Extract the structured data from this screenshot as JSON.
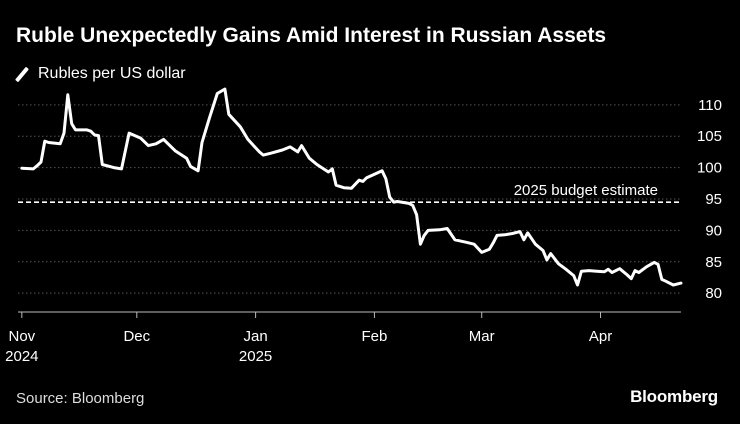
{
  "header": {
    "title": "Ruble Unexpectedly Gains Amid Interest in Russian Assets"
  },
  "footer": {
    "source": "Source: Bloomberg",
    "brand": "Bloomberg"
  },
  "colors": {
    "background": "#000000",
    "line": "#ffffff",
    "grid": "#555555"
  },
  "chart_data": {
    "type": "line",
    "title": "Ruble Unexpectedly Gains Amid Interest in Russian Assets",
    "legend": {
      "placement": "top-left",
      "entries": [
        "Rubles per US dollar"
      ]
    },
    "xlabel": "",
    "ylabel": "",
    "grid": true,
    "ylim": [
      77,
      113
    ],
    "xlim": [
      "2024-10-31",
      "2025-04-22"
    ],
    "y_axis_position": "right",
    "y_ticks": [
      80,
      85,
      90,
      95,
      100,
      105,
      110
    ],
    "x_ticks": [
      {
        "date": "2024-11-01",
        "label": "Nov",
        "sublabel": "2024"
      },
      {
        "date": "2024-12-01",
        "label": "Dec",
        "sublabel": ""
      },
      {
        "date": "2025-01-01",
        "label": "Jan",
        "sublabel": "2025"
      },
      {
        "date": "2025-02-01",
        "label": "Feb",
        "sublabel": ""
      },
      {
        "date": "2025-03-01",
        "label": "Mar",
        "sublabel": ""
      },
      {
        "date": "2025-04-01",
        "label": "Apr",
        "sublabel": ""
      }
    ],
    "annotations": [
      {
        "text": "2025 budget estimate",
        "y": 94.5,
        "style": "dashed"
      }
    ],
    "series": [
      {
        "name": "Rubles per US dollar",
        "points": [
          [
            "2024-11-01",
            99.9
          ],
          [
            "2024-11-04",
            99.8
          ],
          [
            "2024-11-05",
            100.3
          ],
          [
            "2024-11-06",
            100.9
          ],
          [
            "2024-11-07",
            104.2
          ],
          [
            "2024-11-08",
            104.0
          ],
          [
            "2024-11-11",
            103.8
          ],
          [
            "2024-11-12",
            105.5
          ],
          [
            "2024-11-13",
            111.6
          ],
          [
            "2024-11-14",
            107.0
          ],
          [
            "2024-11-15",
            106.0
          ],
          [
            "2024-11-18",
            106.0
          ],
          [
            "2024-11-19",
            105.8
          ],
          [
            "2024-11-20",
            105.2
          ],
          [
            "2024-11-21",
            105.1
          ],
          [
            "2024-11-22",
            100.5
          ],
          [
            "2024-11-25",
            100.0
          ],
          [
            "2024-11-27",
            99.8
          ],
          [
            "2024-11-29",
            105.5
          ],
          [
            "2024-12-02",
            104.7
          ],
          [
            "2024-12-04",
            103.5
          ],
          [
            "2024-12-06",
            103.8
          ],
          [
            "2024-12-08",
            104.5
          ],
          [
            "2024-12-11",
            102.7
          ],
          [
            "2024-12-14",
            101.5
          ],
          [
            "2024-12-15",
            100.2
          ],
          [
            "2024-12-17",
            99.5
          ],
          [
            "2024-12-18",
            104.0
          ],
          [
            "2024-12-20",
            108.0
          ],
          [
            "2024-12-22",
            111.8
          ],
          [
            "2024-12-24",
            112.5
          ],
          [
            "2024-12-25",
            108.5
          ],
          [
            "2024-12-28",
            106.5
          ],
          [
            "2024-12-30",
            104.5
          ],
          [
            "2025-01-02",
            102.5
          ],
          [
            "2025-01-03",
            102.0
          ],
          [
            "2025-01-05",
            102.3
          ],
          [
            "2025-01-08",
            102.8
          ],
          [
            "2025-01-10",
            103.3
          ],
          [
            "2025-01-12",
            102.5
          ],
          [
            "2025-01-13",
            103.5
          ],
          [
            "2025-01-15",
            101.5
          ],
          [
            "2025-01-17",
            100.5
          ],
          [
            "2025-01-20",
            99.3
          ],
          [
            "2025-01-21",
            99.8
          ],
          [
            "2025-01-22",
            97.2
          ],
          [
            "2025-01-24",
            96.8
          ],
          [
            "2025-01-26",
            96.7
          ],
          [
            "2025-01-28",
            98.0
          ],
          [
            "2025-01-29",
            97.8
          ],
          [
            "2025-01-30",
            98.4
          ],
          [
            "2025-02-03",
            99.5
          ],
          [
            "2025-02-04",
            98.2
          ],
          [
            "2025-02-05",
            95.3
          ],
          [
            "2025-02-06",
            94.5
          ],
          [
            "2025-02-07",
            94.6
          ],
          [
            "2025-02-10",
            94.3
          ],
          [
            "2025-02-11",
            94.0
          ],
          [
            "2025-02-12",
            92.5
          ],
          [
            "2025-02-13",
            87.8
          ],
          [
            "2025-02-14",
            89.2
          ],
          [
            "2025-02-15",
            90.0
          ],
          [
            "2025-02-18",
            90.1
          ],
          [
            "2025-02-20",
            90.3
          ],
          [
            "2025-02-22",
            88.5
          ],
          [
            "2025-02-25",
            88.1
          ],
          [
            "2025-02-27",
            87.8
          ],
          [
            "2025-03-01",
            86.5
          ],
          [
            "2025-03-03",
            87.0
          ],
          [
            "2025-03-04",
            88.0
          ],
          [
            "2025-03-05",
            89.2
          ],
          [
            "2025-03-07",
            89.3
          ],
          [
            "2025-03-09",
            89.5
          ],
          [
            "2025-03-11",
            89.8
          ],
          [
            "2025-03-12",
            88.5
          ],
          [
            "2025-03-13",
            89.6
          ],
          [
            "2025-03-15",
            87.8
          ],
          [
            "2025-03-17",
            86.8
          ],
          [
            "2025-03-18",
            85.3
          ],
          [
            "2025-03-19",
            86.3
          ],
          [
            "2025-03-21",
            84.7
          ],
          [
            "2025-03-23",
            83.8
          ],
          [
            "2025-03-25",
            82.8
          ],
          [
            "2025-03-26",
            81.3
          ],
          [
            "2025-03-27",
            83.5
          ],
          [
            "2025-03-29",
            83.6
          ],
          [
            "2025-03-31",
            83.5
          ],
          [
            "2025-04-02",
            83.4
          ],
          [
            "2025-04-03",
            83.8
          ],
          [
            "2025-04-04",
            83.3
          ],
          [
            "2025-04-06",
            83.9
          ],
          [
            "2025-04-08",
            82.9
          ],
          [
            "2025-04-09",
            82.3
          ],
          [
            "2025-04-10",
            83.6
          ],
          [
            "2025-04-11",
            83.3
          ],
          [
            "2025-04-13",
            84.2
          ],
          [
            "2025-04-15",
            84.9
          ],
          [
            "2025-04-16",
            84.6
          ],
          [
            "2025-04-17",
            82.2
          ],
          [
            "2025-04-18",
            81.9
          ],
          [
            "2025-04-20",
            81.3
          ],
          [
            "2025-04-22",
            81.6
          ]
        ]
      }
    ]
  }
}
